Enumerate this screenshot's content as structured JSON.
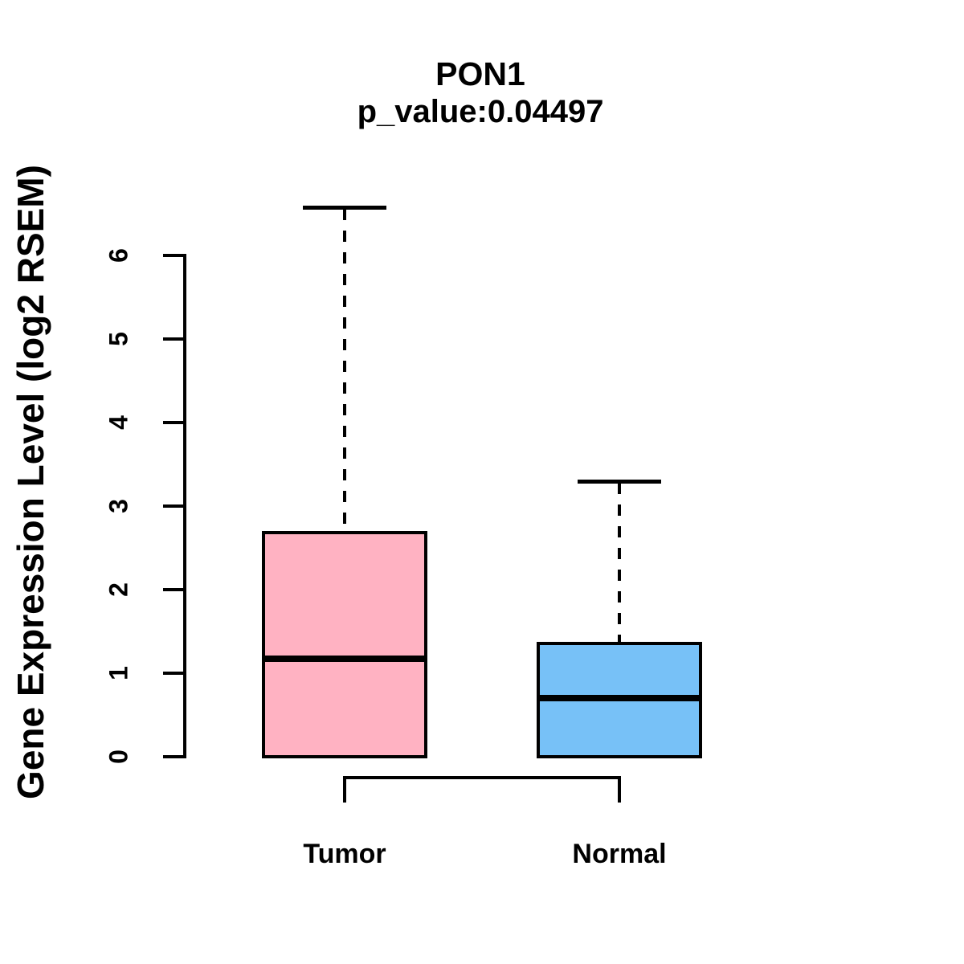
{
  "figure": {
    "title": "PON1",
    "subtitle": "p_value:0.04497",
    "ylabel": "Gene Expression Level (log2 RSEM)"
  },
  "chart_data": {
    "type": "boxplot",
    "title": "PON1",
    "subtitle": "p_value:0.04497",
    "xlabel": "",
    "ylabel": "Gene Expression Level (log2 RSEM)",
    "ylim": [
      0,
      6.8
    ],
    "yticks": [
      0,
      1,
      2,
      3,
      4,
      5,
      6
    ],
    "grid": false,
    "legend": "none",
    "background": "#ffffff",
    "stroke_color": "#000000",
    "categories": [
      "Tumor",
      "Normal"
    ],
    "series": [
      {
        "name": "Tumor",
        "fill_color": "#ffb2c2",
        "whisker_low": 0,
        "q1": 0,
        "median": 1.17,
        "q3": 2.68,
        "whisker_high": 6.58,
        "outliers": []
      },
      {
        "name": "Normal",
        "fill_color": "#77c1f7",
        "whisker_low": 0,
        "q1": 0,
        "median": 0.7,
        "q3": 1.36,
        "whisker_high": 3.3,
        "outliers": []
      }
    ],
    "comparison_bracket": {
      "groups": [
        "Tumor",
        "Normal"
      ],
      "style": "bracket-below-axis"
    }
  }
}
